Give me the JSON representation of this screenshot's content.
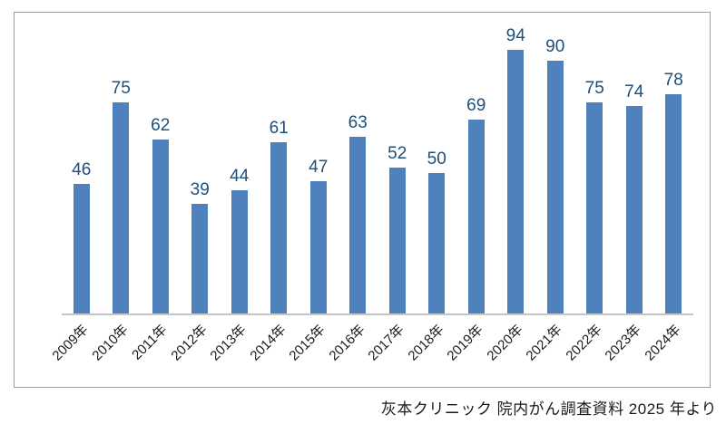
{
  "chart_data": {
    "type": "bar",
    "categories": [
      "2009年",
      "2010年",
      "2011年",
      "2012年",
      "2013年",
      "2014年",
      "2015年",
      "2016年",
      "2017年",
      "2018年",
      "2019年",
      "2020年",
      "2021年",
      "2022年",
      "2023年",
      "2024年"
    ],
    "values": [
      46,
      75,
      62,
      39,
      44,
      61,
      47,
      63,
      52,
      50,
      69,
      94,
      90,
      75,
      74,
      78
    ],
    "title": "",
    "xlabel": "",
    "ylabel": "",
    "ylim": [
      0,
      107
    ],
    "grid": false,
    "legend": false,
    "data_labels": true,
    "bar_color": "#4f81bd",
    "value_label_color": "#1f4e79",
    "category_label_color": "#1a1a1a",
    "axis_line_color": "#c6c6c6",
    "frame_border_color": "#9e9e9e"
  },
  "caption": {
    "text": "灰本クリニック 院内がん調査資料 2025 年より"
  }
}
